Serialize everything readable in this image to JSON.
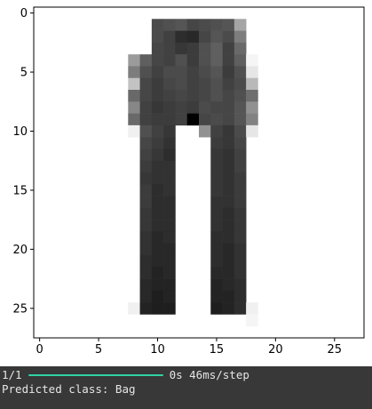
{
  "chart_data": {
    "type": "heatmap",
    "colormap": "gray_r",
    "rows": 28,
    "cols": 28,
    "x_ticks": [
      0,
      5,
      10,
      15,
      20,
      25
    ],
    "y_ticks": [
      0,
      5,
      10,
      15,
      20,
      25
    ],
    "xlim": [
      -0.5,
      27.5
    ],
    "ylim": [
      27.5,
      -0.5
    ],
    "pixels": [
      [
        0,
        0,
        0,
        0,
        0,
        0,
        0,
        0,
        0,
        0,
        0,
        0,
        0,
        0,
        0,
        0,
        0,
        0,
        0,
        0,
        0,
        0,
        0,
        0,
        0,
        0,
        0,
        0
      ],
      [
        0,
        0,
        0,
        0,
        0,
        0,
        0,
        0,
        0,
        0,
        180,
        175,
        170,
        185,
        180,
        175,
        170,
        90,
        0,
        0,
        0,
        0,
        0,
        0,
        0,
        0,
        0,
        0
      ],
      [
        0,
        0,
        0,
        0,
        0,
        0,
        0,
        0,
        0,
        0,
        180,
        190,
        210,
        215,
        185,
        170,
        180,
        130,
        0,
        0,
        0,
        0,
        0,
        0,
        0,
        0,
        0,
        0
      ],
      [
        0,
        0,
        0,
        0,
        0,
        0,
        0,
        0,
        0,
        0,
        185,
        190,
        200,
        195,
        175,
        160,
        190,
        150,
        0,
        0,
        0,
        0,
        0,
        0,
        0,
        0,
        0,
        0
      ],
      [
        0,
        0,
        0,
        0,
        0,
        0,
        0,
        0,
        100,
        160,
        185,
        190,
        175,
        195,
        175,
        160,
        190,
        160,
        10,
        0,
        0,
        0,
        0,
        0,
        0,
        0,
        0,
        0
      ],
      [
        0,
        0,
        0,
        0,
        0,
        0,
        0,
        0,
        130,
        175,
        190,
        180,
        180,
        190,
        180,
        170,
        195,
        175,
        25,
        0,
        0,
        0,
        0,
        0,
        0,
        0,
        0,
        0
      ],
      [
        0,
        0,
        0,
        0,
        0,
        0,
        0,
        0,
        60,
        185,
        195,
        185,
        180,
        190,
        185,
        175,
        190,
        180,
        70,
        0,
        0,
        0,
        0,
        0,
        0,
        0,
        0,
        0
      ],
      [
        0,
        0,
        0,
        0,
        0,
        0,
        0,
        0,
        150,
        185,
        195,
        190,
        185,
        190,
        185,
        175,
        185,
        175,
        145,
        0,
        0,
        0,
        0,
        0,
        0,
        0,
        0,
        0
      ],
      [
        0,
        0,
        0,
        0,
        0,
        0,
        0,
        0,
        120,
        190,
        200,
        195,
        190,
        195,
        180,
        185,
        185,
        170,
        110,
        0,
        0,
        0,
        0,
        0,
        0,
        0,
        0,
        0
      ],
      [
        0,
        0,
        0,
        0,
        0,
        0,
        0,
        0,
        150,
        190,
        195,
        195,
        190,
        255,
        185,
        180,
        185,
        170,
        125,
        0,
        0,
        0,
        0,
        0,
        0,
        0,
        0,
        0
      ],
      [
        0,
        0,
        0,
        0,
        0,
        0,
        0,
        0,
        15,
        175,
        190,
        200,
        0,
        0,
        110,
        190,
        200,
        180,
        25,
        0,
        0,
        0,
        0,
        0,
        0,
        0,
        0,
        0
      ],
      [
        0,
        0,
        0,
        0,
        0,
        0,
        0,
        0,
        0,
        185,
        195,
        205,
        0,
        0,
        0,
        195,
        200,
        185,
        0,
        0,
        0,
        0,
        0,
        0,
        0,
        0,
        0,
        0
      ],
      [
        0,
        0,
        0,
        0,
        0,
        0,
        0,
        0,
        0,
        190,
        200,
        210,
        0,
        0,
        0,
        200,
        205,
        190,
        0,
        0,
        0,
        0,
        0,
        0,
        0,
        0,
        0,
        0
      ],
      [
        0,
        0,
        0,
        0,
        0,
        0,
        0,
        0,
        0,
        195,
        205,
        205,
        0,
        0,
        0,
        200,
        205,
        190,
        0,
        0,
        0,
        0,
        0,
        0,
        0,
        0,
        0,
        0
      ],
      [
        0,
        0,
        0,
        0,
        0,
        0,
        0,
        0,
        0,
        200,
        205,
        205,
        0,
        0,
        0,
        200,
        205,
        195,
        0,
        0,
        0,
        0,
        0,
        0,
        0,
        0,
        0,
        0
      ],
      [
        0,
        0,
        0,
        0,
        0,
        0,
        0,
        0,
        0,
        195,
        210,
        205,
        0,
        0,
        0,
        200,
        205,
        195,
        0,
        0,
        0,
        0,
        0,
        0,
        0,
        0,
        0,
        0
      ],
      [
        0,
        0,
        0,
        0,
        0,
        0,
        0,
        0,
        0,
        195,
        210,
        210,
        0,
        0,
        0,
        205,
        205,
        195,
        0,
        0,
        0,
        0,
        0,
        0,
        0,
        0,
        0,
        0
      ],
      [
        0,
        0,
        0,
        0,
        0,
        0,
        0,
        0,
        0,
        200,
        210,
        210,
        0,
        0,
        0,
        205,
        210,
        200,
        0,
        0,
        0,
        0,
        0,
        0,
        0,
        0,
        0,
        0
      ],
      [
        0,
        0,
        0,
        0,
        0,
        0,
        0,
        0,
        0,
        200,
        210,
        210,
        0,
        0,
        0,
        205,
        210,
        200,
        0,
        0,
        0,
        0,
        0,
        0,
        0,
        0,
        0,
        0
      ],
      [
        0,
        0,
        0,
        0,
        0,
        0,
        0,
        0,
        0,
        205,
        215,
        210,
        0,
        0,
        0,
        210,
        210,
        200,
        0,
        0,
        0,
        0,
        0,
        0,
        0,
        0,
        0,
        0
      ],
      [
        0,
        0,
        0,
        0,
        0,
        0,
        0,
        0,
        0,
        205,
        215,
        215,
        0,
        0,
        0,
        210,
        215,
        205,
        0,
        0,
        0,
        0,
        0,
        0,
        0,
        0,
        0,
        0
      ],
      [
        0,
        0,
        0,
        0,
        0,
        0,
        0,
        0,
        0,
        210,
        215,
        215,
        0,
        0,
        0,
        210,
        215,
        205,
        0,
        0,
        0,
        0,
        0,
        0,
        0,
        0,
        0,
        0
      ],
      [
        0,
        0,
        0,
        0,
        0,
        0,
        0,
        0,
        0,
        210,
        220,
        215,
        0,
        0,
        0,
        215,
        215,
        205,
        0,
        0,
        0,
        0,
        0,
        0,
        0,
        0,
        0,
        0
      ],
      [
        0,
        0,
        0,
        0,
        0,
        0,
        0,
        0,
        0,
        215,
        220,
        220,
        0,
        0,
        0,
        220,
        215,
        210,
        0,
        0,
        0,
        0,
        0,
        0,
        0,
        0,
        0,
        0
      ],
      [
        0,
        0,
        0,
        0,
        0,
        0,
        0,
        0,
        0,
        215,
        225,
        220,
        0,
        0,
        0,
        220,
        220,
        210,
        0,
        0,
        0,
        0,
        0,
        0,
        0,
        0,
        0,
        0
      ],
      [
        0,
        0,
        0,
        0,
        0,
        0,
        0,
        0,
        15,
        220,
        225,
        225,
        0,
        0,
        0,
        225,
        220,
        210,
        15,
        0,
        0,
        0,
        0,
        0,
        0,
        0,
        0,
        0
      ],
      [
        0,
        0,
        0,
        0,
        0,
        0,
        0,
        0,
        0,
        0,
        0,
        0,
        0,
        0,
        0,
        0,
        0,
        0,
        10,
        0,
        0,
        0,
        0,
        0,
        0,
        0,
        0,
        0
      ],
      [
        0,
        0,
        0,
        0,
        0,
        0,
        0,
        0,
        0,
        0,
        0,
        0,
        0,
        0,
        0,
        0,
        0,
        0,
        0,
        0,
        0,
        0,
        0,
        0,
        0,
        0,
        0,
        0
      ]
    ]
  },
  "console": {
    "step": "1/1",
    "timing": "0s 46ms/step",
    "prediction": "Predicted class: Bag"
  },
  "colors": {
    "console_bg": "#383838",
    "console_text": "#e6e6e6",
    "progress_bar": "#2fd3a5"
  }
}
